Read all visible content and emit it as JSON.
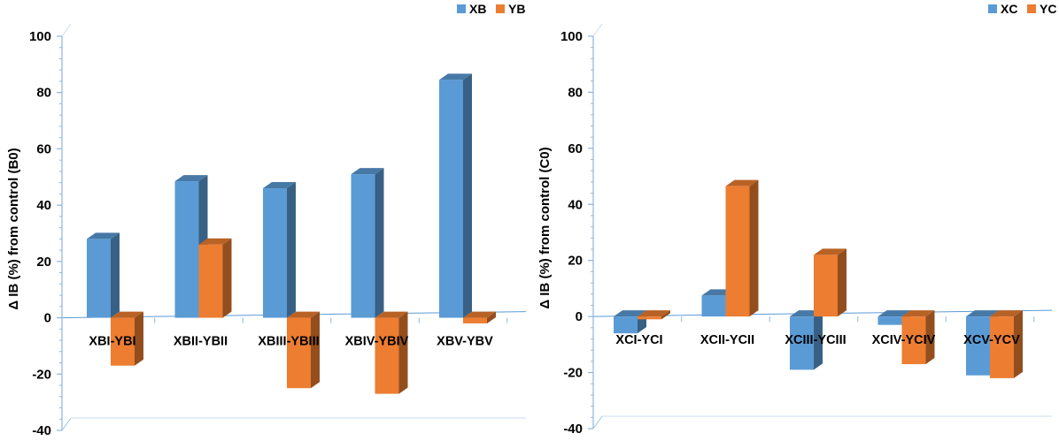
{
  "chart_data": [
    {
      "type": "bar",
      "ylabel": "Δ IB (%) from control (B0)",
      "xlabel": "",
      "categories": [
        "XBI-YBI",
        "XBII-YBII",
        "XBIII-YBIII",
        "XBIV-YBIV",
        "XBV-YBV"
      ],
      "series": [
        {
          "name": "XB",
          "values": [
            28,
            48.5,
            46,
            51,
            84.5
          ],
          "color": "#5B9BD5"
        },
        {
          "name": "YB",
          "values": [
            -17,
            26,
            -25,
            -27,
            -2
          ],
          "color": "#ED7D31"
        }
      ],
      "ylim": [
        -40,
        100
      ],
      "yticks": [
        -40,
        -20,
        0,
        20,
        40,
        60,
        80,
        100
      ],
      "grid": false,
      "legend": "top-right",
      "bar_style": "3d"
    },
    {
      "type": "bar",
      "ylabel": "Δ IB (%) from control (C0)",
      "xlabel": "",
      "categories": [
        "XCI-YCI",
        "XCII-YCII",
        "XCIII-YCIII",
        "XCIV-YCIV",
        "XCV-YCV"
      ],
      "series": [
        {
          "name": "XC",
          "values": [
            -6,
            7.5,
            -19,
            -3,
            -21
          ],
          "color": "#5B9BD5"
        },
        {
          "name": "YC",
          "values": [
            -1,
            46.5,
            22,
            -17,
            -22
          ],
          "color": "#ED7D31"
        }
      ],
      "ylim": [
        -40,
        100
      ],
      "yticks": [
        -40,
        -20,
        0,
        20,
        40,
        60,
        80,
        100
      ],
      "grid": false,
      "legend": "top-right",
      "bar_style": "3d"
    }
  ]
}
